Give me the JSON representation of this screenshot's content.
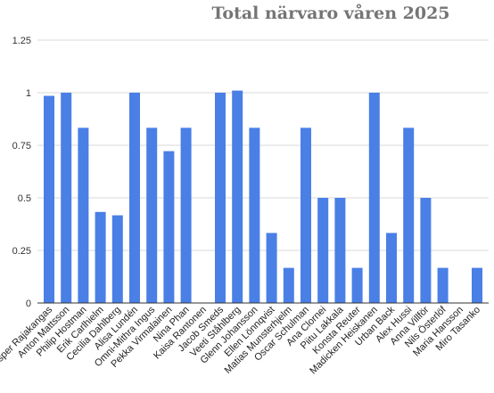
{
  "chart_data": {
    "type": "bar",
    "title": "Total närvaro våren 2025",
    "xlabel": "",
    "ylabel": "",
    "ylim": [
      0,
      1.25
    ],
    "yticks": [
      0,
      0.25,
      0.5,
      0.75,
      1,
      1.25
    ],
    "ytick_labels": [
      "0",
      "0.25",
      "0.5",
      "0.75",
      "1",
      "1.25"
    ],
    "grid": true,
    "bar_color": "#4a7fe6",
    "categories": [
      "Jesper Rajakangas",
      "Anton Mattsson",
      "Philip Hostman",
      "Erik Carlhielm",
      "Cecilia Dahlberg",
      "Alisa Lundén",
      "Omni-Mithra Ingus",
      "Pekka Virmalainen",
      "Nina Phan",
      "Kaisa Rantonen",
      "Jacob Smeds",
      "Veeti Ståhlberg",
      "Glenn Johansson",
      "Ellen Lönnqvist",
      "Matias Munsterhjelm",
      "Oscar Schulman",
      "Ana Clornei",
      "Piitu Lakkala",
      "Konsta Reuter",
      "Madicken Heiskanen",
      "Urban Back",
      "Alex Hussi",
      "Anna Villför",
      "Nils Österlöf",
      "Maria Hansson",
      "Miro Tasanko"
    ],
    "values": [
      0.985,
      1.0,
      0.833,
      0.433,
      0.417,
      1.0,
      0.833,
      0.722,
      0.833,
      0,
      1.0,
      1.01,
      0.833,
      0.333,
      0.167,
      0.833,
      0.5,
      0.5,
      0.167,
      1.0,
      0.333,
      0.833,
      0.5,
      0.167,
      0,
      0.167
    ]
  }
}
